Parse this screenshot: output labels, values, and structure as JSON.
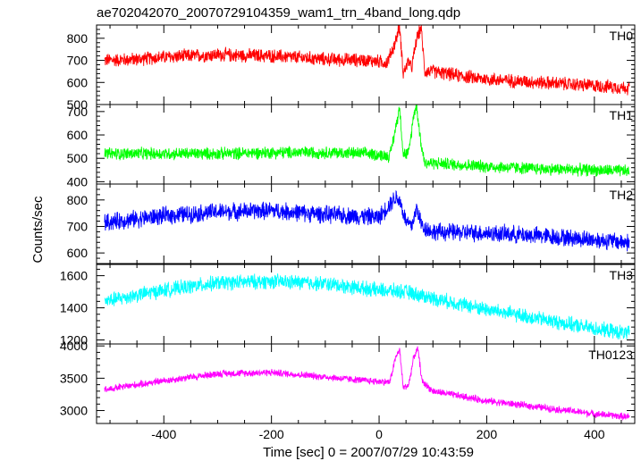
{
  "title": "ae702042070_20070729104359_wam1_trn_4band_long.qdp",
  "ylabel": "Counts/sec",
  "xlabel": "Time [sec] 0 = 2007/07/29 10:43:59",
  "chart_data": {
    "type": "line",
    "title": "ae702042070_20070729104359_wam1_trn_4band_long.qdp",
    "xlabel": "Time [sec] 0 = 2007/07/29 10:43:59",
    "ylabel": "Counts/sec",
    "xlim": [
      -525,
      475
    ],
    "x_ticks": [
      "-400",
      "-200",
      "0",
      "200",
      "400"
    ],
    "x_tick_values": [
      -400,
      -200,
      0,
      200,
      400
    ],
    "grid": false,
    "panels": [
      {
        "label": "TH0",
        "color": "#ff0000",
        "ylim": [
          500,
          860
        ],
        "y_ticks": [
          500,
          600,
          700,
          800
        ],
        "y_tick_labels": [
          "500",
          "600",
          "700",
          "800"
        ],
        "noise": 28,
        "points": [
          [
            -510,
            700
          ],
          [
            -450,
            705
          ],
          [
            -400,
            715
          ],
          [
            -300,
            725
          ],
          [
            -200,
            720
          ],
          [
            -100,
            705
          ],
          [
            -20,
            700
          ],
          [
            15,
            690
          ],
          [
            30,
            780
          ],
          [
            38,
            855
          ],
          [
            45,
            640
          ],
          [
            55,
            700
          ],
          [
            60,
            660
          ],
          [
            70,
            800
          ],
          [
            78,
            850
          ],
          [
            85,
            650
          ],
          [
            100,
            650
          ],
          [
            150,
            630
          ],
          [
            180,
            620
          ],
          [
            200,
            615
          ],
          [
            300,
            600
          ],
          [
            400,
            585
          ],
          [
            465,
            575
          ]
        ]
      },
      {
        "label": "TH1",
        "color": "#00ff00",
        "ylim": [
          390,
          730
        ],
        "y_ticks": [
          400,
          500,
          600,
          700
        ],
        "y_tick_labels": [
          "400",
          "500",
          "600",
          "700"
        ],
        "noise": 24,
        "points": [
          [
            -510,
            520
          ],
          [
            -400,
            520
          ],
          [
            -300,
            520
          ],
          [
            -200,
            525
          ],
          [
            -100,
            525
          ],
          [
            -20,
            520
          ],
          [
            20,
            510
          ],
          [
            30,
            620
          ],
          [
            38,
            720
          ],
          [
            45,
            520
          ],
          [
            55,
            520
          ],
          [
            65,
            700
          ],
          [
            70,
            720
          ],
          [
            78,
            560
          ],
          [
            85,
            480
          ],
          [
            100,
            480
          ],
          [
            200,
            465
          ],
          [
            300,
            455
          ],
          [
            400,
            450
          ],
          [
            465,
            445
          ]
        ]
      },
      {
        "label": "TH2",
        "color": "#0000ff",
        "ylim": [
          560,
          860
        ],
        "y_ticks": [
          600,
          700,
          800
        ],
        "y_tick_labels": [
          "600",
          "700",
          "800"
        ],
        "noise": 30,
        "points": [
          [
            -510,
            715
          ],
          [
            -400,
            740
          ],
          [
            -300,
            755
          ],
          [
            -200,
            760
          ],
          [
            -100,
            745
          ],
          [
            0,
            735
          ],
          [
            30,
            810
          ],
          [
            38,
            800
          ],
          [
            50,
            720
          ],
          [
            60,
            700
          ],
          [
            70,
            770
          ],
          [
            80,
            700
          ],
          [
            100,
            680
          ],
          [
            200,
            675
          ],
          [
            300,
            665
          ],
          [
            400,
            650
          ],
          [
            465,
            640
          ]
        ]
      },
      {
        "label": "TH3",
        "color": "#00ffff",
        "ylim": [
          1175,
          1670
        ],
        "y_ticks": [
          1200,
          1400,
          1600
        ],
        "y_tick_labels": [
          "1200",
          "1400",
          "1600"
        ],
        "noise": 42,
        "points": [
          [
            -510,
            1440
          ],
          [
            -450,
            1480
          ],
          [
            -400,
            1510
          ],
          [
            -300,
            1555
          ],
          [
            -200,
            1565
          ],
          [
            -100,
            1550
          ],
          [
            0,
            1510
          ],
          [
            50,
            1500
          ],
          [
            100,
            1460
          ],
          [
            200,
            1390
          ],
          [
            300,
            1330
          ],
          [
            400,
            1270
          ],
          [
            465,
            1240
          ]
        ]
      },
      {
        "label": "TH0123",
        "color": "#ff00ff",
        "ylim": [
          2800,
          4030
        ],
        "y_ticks": [
          3000,
          3500,
          4000
        ],
        "y_tick_labels": [
          "3000",
          "3500",
          "4000"
        ],
        "noise": 50,
        "points": [
          [
            -510,
            3320
          ],
          [
            -450,
            3400
          ],
          [
            -400,
            3460
          ],
          [
            -300,
            3570
          ],
          [
            -200,
            3590
          ],
          [
            -100,
            3520
          ],
          [
            -20,
            3460
          ],
          [
            20,
            3440
          ],
          [
            30,
            3800
          ],
          [
            38,
            3950
          ],
          [
            45,
            3350
          ],
          [
            55,
            3400
          ],
          [
            65,
            3850
          ],
          [
            72,
            3950
          ],
          [
            80,
            3450
          ],
          [
            100,
            3300
          ],
          [
            200,
            3150
          ],
          [
            300,
            3050
          ],
          [
            400,
            2950
          ],
          [
            465,
            2900
          ]
        ]
      }
    ]
  }
}
